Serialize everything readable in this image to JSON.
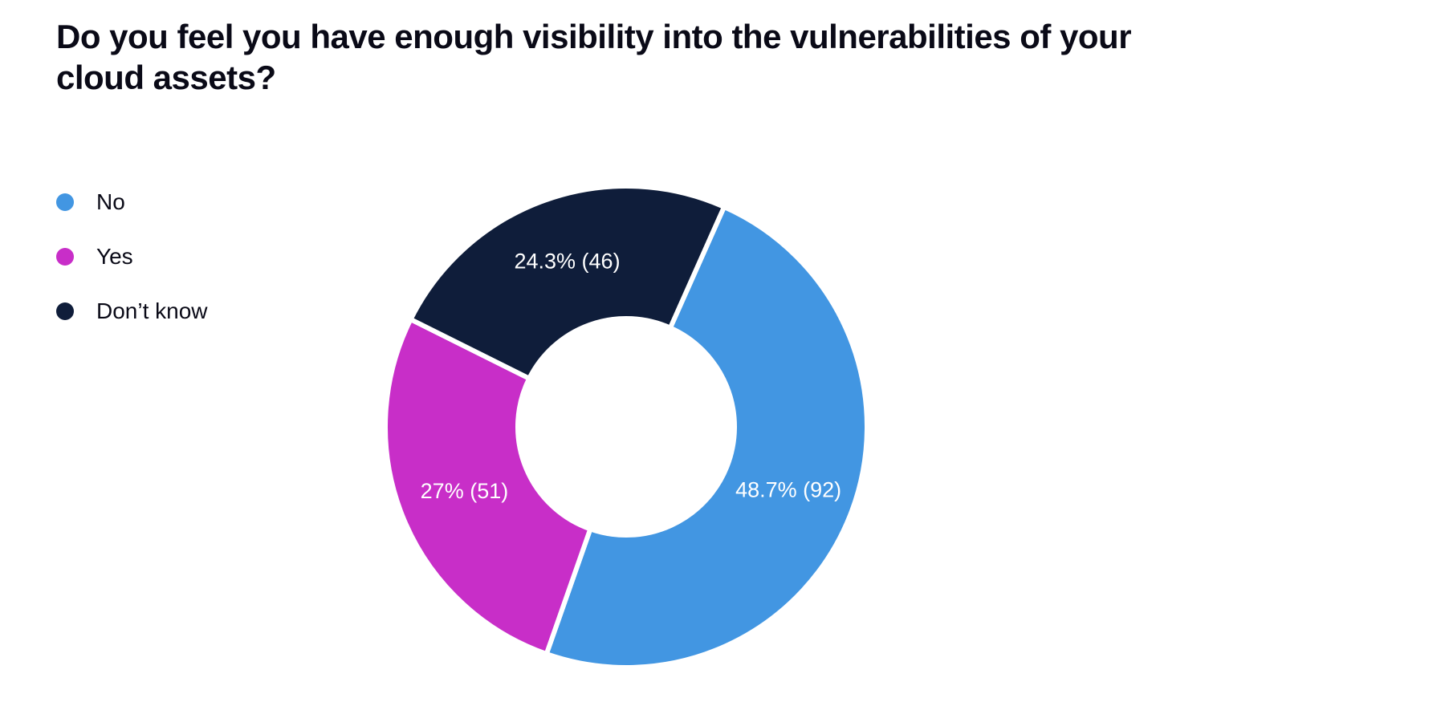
{
  "chart": {
    "type": "donut",
    "title": "Do you feel you have enough visibility into the vulnerabilities of your cloud assets?",
    "title_fontsize": 42,
    "title_fontweight": 800,
    "title_color": "#0a0a17",
    "background_color": "#ffffff",
    "inner_radius": 135,
    "outer_radius": 300,
    "slice_gap_color": "#ffffff",
    "slice_gap_width": 6,
    "start_angle": -66,
    "label_fontsize": 27,
    "label_color": "#ffffff",
    "segments": [
      {
        "key": "no",
        "label": "No",
        "percent": 48.7,
        "count": 92,
        "color": "#4296e2",
        "display": "48.7% (92)"
      },
      {
        "key": "yes",
        "label": "Yes",
        "percent": 27.0,
        "count": 51,
        "color": "#c82ec8",
        "display": "27% (51)"
      },
      {
        "key": "dont-know",
        "label": "Don’t know",
        "percent": 24.3,
        "count": 46,
        "color": "#0f1d3a",
        "display": "24.3% (46)"
      }
    ],
    "legend": {
      "fontsize": 28,
      "text_color": "#0a0a17",
      "dot_radius": 11
    }
  }
}
